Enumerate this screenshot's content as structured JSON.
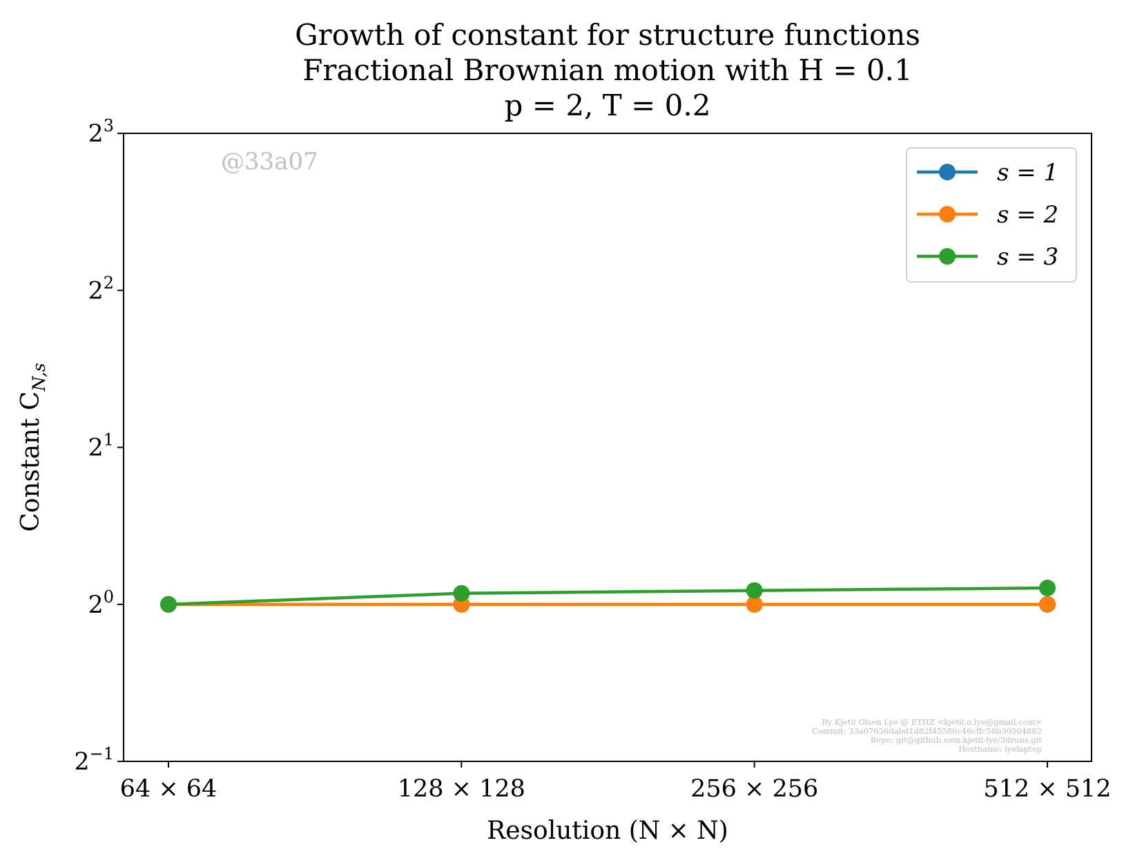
{
  "chart_data": {
    "type": "line",
    "title_lines": [
      "Growth of constant for structure functions",
      "Fractional Brownian motion with H = 0.1",
      "p = 2, T = 0.2"
    ],
    "xlabel": "Resolution (N × N)",
    "ylabel": "Constant C",
    "ylabel_subscript": "N,s",
    "categories": [
      "64 × 64",
      "128 × 128",
      "256 × 256",
      "512 × 512"
    ],
    "y_scale": "log2",
    "ylim": [
      0.5,
      8
    ],
    "y_ticks": [
      {
        "value": 0.5,
        "base": "2",
        "exp": "−1"
      },
      {
        "value": 1,
        "base": "2",
        "exp": "0"
      },
      {
        "value": 2,
        "base": "2",
        "exp": "1"
      },
      {
        "value": 4,
        "base": "2",
        "exp": "2"
      },
      {
        "value": 8,
        "base": "2",
        "exp": "3"
      }
    ],
    "legend_position": "top-right",
    "grid": false,
    "series": [
      {
        "name": "s = 1",
        "color": "#1f77b4",
        "values": [
          1.0,
          1.0,
          1.0,
          1.0
        ]
      },
      {
        "name": "s = 2",
        "color": "#ff7f0e",
        "values": [
          1.0,
          1.0,
          1.0,
          1.0
        ]
      },
      {
        "name": "s = 3",
        "color": "#2ca02c",
        "values": [
          1.0,
          1.05,
          1.063,
          1.075
        ]
      }
    ],
    "watermark": "@33a07",
    "credits": [
      "By Kjetil Olsen Lye @ ETHZ <kjetil.o.lye@gmail.com>",
      "Commit: 33a07656dabd1d82f45586c46cffc58b30504882",
      "Repo: git@github.com:kjetil-lye/3druns.git",
      "Hostname: lyelaptop"
    ]
  }
}
